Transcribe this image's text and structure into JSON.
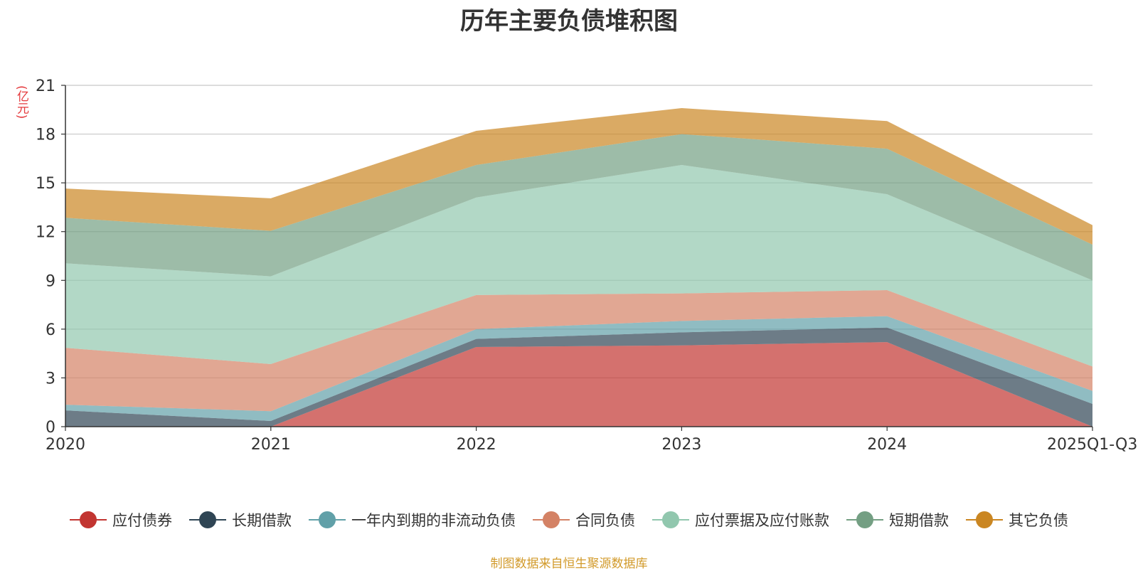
{
  "chart_data": {
    "type": "area",
    "stacked": true,
    "title": "历年主要负债堆积图",
    "unit_label": "(亿元)",
    "categories": [
      "2020",
      "2021",
      "2022",
      "2023",
      "2024",
      "2025Q1-Q3"
    ],
    "ylim": [
      0,
      21
    ],
    "yticks": [
      0,
      3,
      6,
      9,
      12,
      15,
      18,
      21
    ],
    "grid": true,
    "legend_position": "bottom",
    "series": [
      {
        "name": "应付债券",
        "color": "#c23531",
        "values": [
          0,
          0,
          4.9,
          5.0,
          5.2,
          0
        ]
      },
      {
        "name": "长期借款",
        "color": "#2f4554",
        "values": [
          1.0,
          0.35,
          0.5,
          0.8,
          0.9,
          1.4
        ]
      },
      {
        "name": "一年内到期的非流动负债",
        "color": "#61a0a8",
        "values": [
          0.35,
          0.6,
          0.6,
          0.7,
          0.7,
          0.8
        ]
      },
      {
        "name": "合同负债",
        "color": "#d48265",
        "values": [
          3.5,
          2.9,
          2.1,
          1.7,
          1.6,
          1.5
        ]
      },
      {
        "name": "应付票据及应付账款",
        "color": "#91c7ae",
        "values": [
          5.2,
          5.4,
          6.0,
          7.9,
          5.9,
          5.3
        ]
      },
      {
        "name": "短期借款",
        "color": "#749f83",
        "values": [
          2.8,
          2.8,
          2.0,
          1.9,
          2.8,
          2.2
        ]
      },
      {
        "name": "其它负债",
        "color": "#ca8622",
        "values": [
          1.8,
          2.0,
          2.1,
          1.6,
          1.7,
          1.2
        ]
      }
    ]
  },
  "source_note": "制图数据来自恒生聚源数据库"
}
